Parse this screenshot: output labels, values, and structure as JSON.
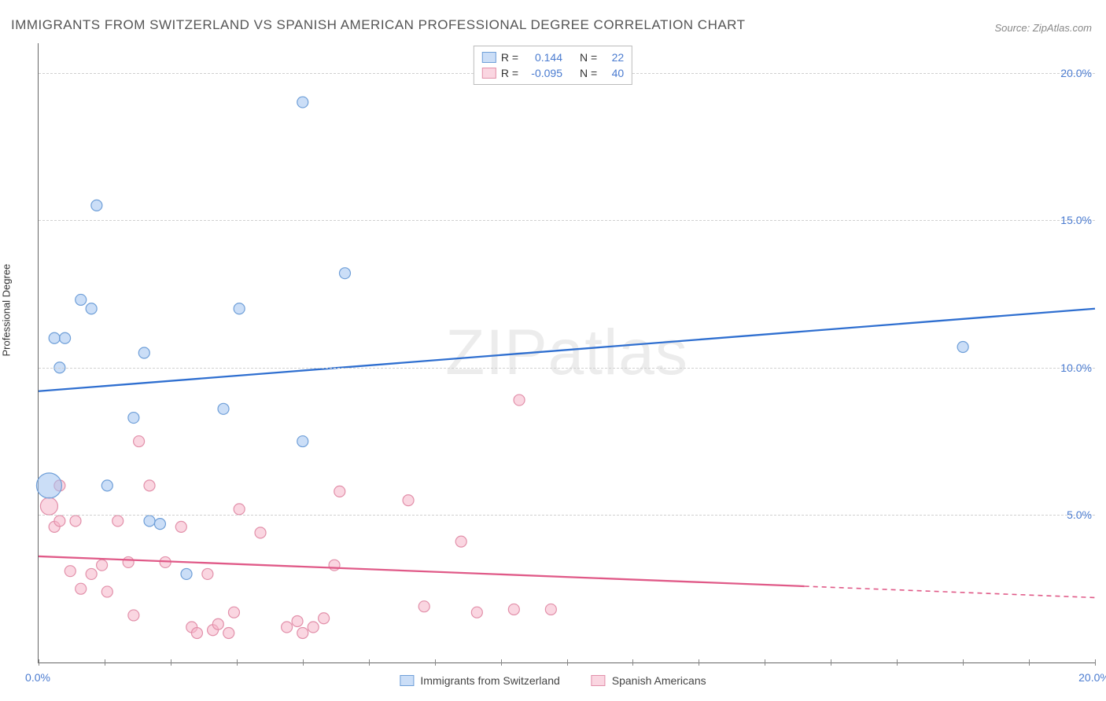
{
  "title": "IMMIGRANTS FROM SWITZERLAND VS SPANISH AMERICAN PROFESSIONAL DEGREE CORRELATION CHART",
  "source": "Source: ZipAtlas.com",
  "watermark": "ZIPatlas",
  "y_axis_label": "Professional Degree",
  "chart": {
    "type": "scatter",
    "xlim": [
      0,
      20
    ],
    "ylim": [
      0,
      21
    ],
    "x_ticks_label_positions": [
      0,
      20
    ],
    "x_tick_labels": [
      "0.0%",
      "20.0%"
    ],
    "x_minor_ticks": 16,
    "y_ticks": [
      5,
      10,
      15,
      20
    ],
    "y_tick_labels": [
      "5.0%",
      "10.0%",
      "15.0%",
      "20.0%"
    ],
    "background_color": "#ffffff",
    "grid_color": "#d0d0d0",
    "series": [
      {
        "name": "Immigrants from Switzerland",
        "color_fill": "rgba(160,195,240,0.55)",
        "color_stroke": "#6f9fd8",
        "line_color": "#2f6fd0",
        "r": 0.144,
        "n": 22,
        "trend": {
          "x1": 0,
          "y1": 9.2,
          "x2": 20,
          "y2": 12.0,
          "dash_from_x": null
        },
        "points": [
          {
            "x": 0.2,
            "y": 6.0,
            "r": 16
          },
          {
            "x": 0.3,
            "y": 11.0,
            "r": 7
          },
          {
            "x": 0.4,
            "y": 10.0,
            "r": 7
          },
          {
            "x": 0.5,
            "y": 11.0,
            "r": 7
          },
          {
            "x": 0.8,
            "y": 12.3,
            "r": 7
          },
          {
            "x": 1.0,
            "y": 12.0,
            "r": 7
          },
          {
            "x": 1.1,
            "y": 15.5,
            "r": 7
          },
          {
            "x": 1.3,
            "y": 6.0,
            "r": 7
          },
          {
            "x": 1.8,
            "y": 8.3,
            "r": 7
          },
          {
            "x": 2.0,
            "y": 10.5,
            "r": 7
          },
          {
            "x": 2.1,
            "y": 4.8,
            "r": 7
          },
          {
            "x": 2.3,
            "y": 4.7,
            "r": 7
          },
          {
            "x": 2.8,
            "y": 3.0,
            "r": 7
          },
          {
            "x": 3.5,
            "y": 8.6,
            "r": 7
          },
          {
            "x": 3.8,
            "y": 12.0,
            "r": 7
          },
          {
            "x": 5.0,
            "y": 7.5,
            "r": 7
          },
          {
            "x": 5.0,
            "y": 19.0,
            "r": 7
          },
          {
            "x": 5.8,
            "y": 13.2,
            "r": 7
          },
          {
            "x": 17.5,
            "y": 10.7,
            "r": 7
          }
        ]
      },
      {
        "name": "Spanish Americans",
        "color_fill": "rgba(245,180,200,0.55)",
        "color_stroke": "#e290aa",
        "line_color": "#e05a88",
        "r": -0.095,
        "n": 40,
        "trend": {
          "x1": 0,
          "y1": 3.6,
          "x2": 20,
          "y2": 2.2,
          "dash_from_x": 14.5
        },
        "points": [
          {
            "x": 0.2,
            "y": 5.3,
            "r": 11
          },
          {
            "x": 0.3,
            "y": 4.6,
            "r": 7
          },
          {
            "x": 0.4,
            "y": 4.8,
            "r": 7
          },
          {
            "x": 0.4,
            "y": 6.0,
            "r": 7
          },
          {
            "x": 0.6,
            "y": 3.1,
            "r": 7
          },
          {
            "x": 0.7,
            "y": 4.8,
            "r": 7
          },
          {
            "x": 0.8,
            "y": 2.5,
            "r": 7
          },
          {
            "x": 1.0,
            "y": 3.0,
            "r": 7
          },
          {
            "x": 1.2,
            "y": 3.3,
            "r": 7
          },
          {
            "x": 1.3,
            "y": 2.4,
            "r": 7
          },
          {
            "x": 1.5,
            "y": 4.8,
            "r": 7
          },
          {
            "x": 1.7,
            "y": 3.4,
            "r": 7
          },
          {
            "x": 1.8,
            "y": 1.6,
            "r": 7
          },
          {
            "x": 1.9,
            "y": 7.5,
            "r": 7
          },
          {
            "x": 2.1,
            "y": 6.0,
            "r": 7
          },
          {
            "x": 2.4,
            "y": 3.4,
            "r": 7
          },
          {
            "x": 2.7,
            "y": 4.6,
            "r": 7
          },
          {
            "x": 2.9,
            "y": 1.2,
            "r": 7
          },
          {
            "x": 3.0,
            "y": 1.0,
            "r": 7
          },
          {
            "x": 3.2,
            "y": 3.0,
            "r": 7
          },
          {
            "x": 3.3,
            "y": 1.1,
            "r": 7
          },
          {
            "x": 3.4,
            "y": 1.3,
            "r": 7
          },
          {
            "x": 3.6,
            "y": 1.0,
            "r": 7
          },
          {
            "x": 3.7,
            "y": 1.7,
            "r": 7
          },
          {
            "x": 3.8,
            "y": 5.2,
            "r": 7
          },
          {
            "x": 4.2,
            "y": 4.4,
            "r": 7
          },
          {
            "x": 4.7,
            "y": 1.2,
            "r": 7
          },
          {
            "x": 4.9,
            "y": 1.4,
            "r": 7
          },
          {
            "x": 5.0,
            "y": 1.0,
            "r": 7
          },
          {
            "x": 5.2,
            "y": 1.2,
            "r": 7
          },
          {
            "x": 5.4,
            "y": 1.5,
            "r": 7
          },
          {
            "x": 5.6,
            "y": 3.3,
            "r": 7
          },
          {
            "x": 5.7,
            "y": 5.8,
            "r": 7
          },
          {
            "x": 7.0,
            "y": 5.5,
            "r": 7
          },
          {
            "x": 7.3,
            "y": 1.9,
            "r": 7
          },
          {
            "x": 8.0,
            "y": 4.1,
            "r": 7
          },
          {
            "x": 8.3,
            "y": 1.7,
            "r": 7
          },
          {
            "x": 9.0,
            "y": 1.8,
            "r": 7
          },
          {
            "x": 9.1,
            "y": 8.9,
            "r": 7
          },
          {
            "x": 9.7,
            "y": 1.8,
            "r": 7
          }
        ]
      }
    ]
  },
  "legend_stats_labels": {
    "r": "R =",
    "n": "N ="
  }
}
